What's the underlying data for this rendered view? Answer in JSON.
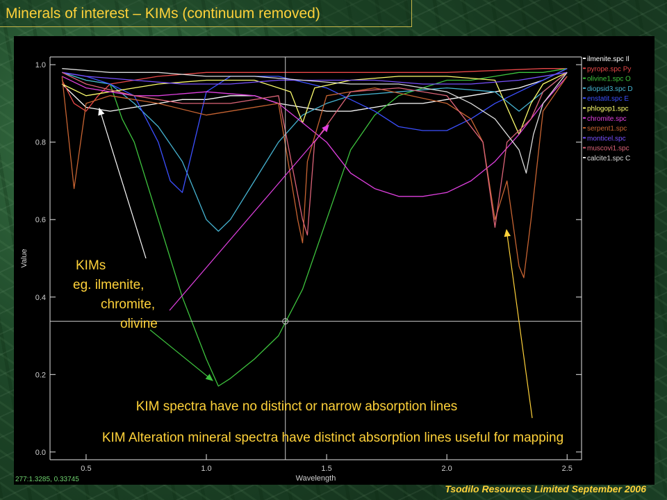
{
  "slide": {
    "title": "Minerals of interest – KIMs (continuum removed)",
    "footer": "Tsodilo Resources Limited September 2006"
  },
  "colors": {
    "annotation_text": "#ffd23a",
    "ilmenite": "#ffffff",
    "pyrope": "#e84848",
    "olivine": "#3ec43e",
    "diopside": "#46b4d2",
    "enstatite": "#3c50ff",
    "phlogopite": "#ffff6e",
    "chromite": "#e040e0",
    "serpentine": "#c86432",
    "monticellite": "#7850ff",
    "muscovite": "#dc6478",
    "calcite": "#dcdcdc",
    "cursor": "#cccccc"
  },
  "chart_data": {
    "type": "line",
    "xlabel": "Wavelength",
    "ylabel": "Value",
    "xlim": [
      0.35,
      2.56
    ],
    "ylim": [
      -0.02,
      1.02
    ],
    "xticks": [
      "0.5",
      "1.0",
      "1.5",
      "2.0",
      "2.5"
    ],
    "xtick_values": [
      0.5,
      1.0,
      1.5,
      2.0,
      2.5
    ],
    "yticks": [
      "0.0",
      "0.2",
      "0.4",
      "0.6",
      "0.8",
      "1.0"
    ],
    "ytick_values": [
      0.0,
      0.2,
      0.4,
      0.6,
      0.8,
      1.0
    ],
    "grid": false,
    "legend_position": "top-right",
    "cursor": {
      "x": 1.3285,
      "y": 0.33745,
      "readout": "277:1.3285, 0.33745"
    },
    "series": [
      {
        "name": "ilmenite.spc Il",
        "color_key": "ilmenite",
        "x": [
          0.4,
          0.5,
          0.6,
          0.7,
          0.8,
          0.9,
          1.0,
          1.1,
          1.2,
          1.3,
          1.4,
          1.5,
          1.6,
          1.7,
          1.8,
          1.9,
          2.0,
          2.1,
          2.2,
          2.3,
          2.4,
          2.5
        ],
        "y": [
          0.95,
          0.89,
          0.88,
          0.89,
          0.9,
          0.91,
          0.91,
          0.92,
          0.92,
          0.9,
          0.89,
          0.88,
          0.88,
          0.89,
          0.9,
          0.9,
          0.91,
          0.92,
          0.93,
          0.94,
          0.96,
          0.99
        ]
      },
      {
        "name": "pyrope.spc Py",
        "color_key": "pyrope",
        "x": [
          0.4,
          0.45,
          0.5,
          0.55,
          0.6,
          0.7,
          0.8,
          1.0,
          1.3,
          1.6,
          2.0,
          2.4,
          2.5
        ],
        "y": [
          0.96,
          0.9,
          0.88,
          0.92,
          0.95,
          0.96,
          0.97,
          0.98,
          0.98,
          0.98,
          0.98,
          0.99,
          0.99
        ]
      },
      {
        "name": "olivine1.spc O",
        "color_key": "olivine",
        "x": [
          0.4,
          0.5,
          0.6,
          0.65,
          0.7,
          0.8,
          0.9,
          1.0,
          1.05,
          1.1,
          1.2,
          1.3,
          1.4,
          1.5,
          1.6,
          1.7,
          1.8,
          1.9,
          2.0,
          2.1,
          2.2,
          2.3,
          2.4,
          2.5
        ],
        "y": [
          0.98,
          0.96,
          0.95,
          0.86,
          0.8,
          0.6,
          0.4,
          0.24,
          0.17,
          0.19,
          0.24,
          0.3,
          0.42,
          0.6,
          0.78,
          0.87,
          0.92,
          0.94,
          0.96,
          0.96,
          0.97,
          0.98,
          0.98,
          0.99
        ]
      },
      {
        "name": "diopsid3.spc D",
        "color_key": "diopside",
        "x": [
          0.4,
          0.5,
          0.6,
          0.7,
          0.8,
          0.9,
          1.0,
          1.05,
          1.1,
          1.2,
          1.3,
          1.4,
          1.5,
          1.6,
          1.8,
          2.0,
          2.2,
          2.3,
          2.4,
          2.5
        ],
        "y": [
          0.98,
          0.96,
          0.95,
          0.9,
          0.84,
          0.75,
          0.6,
          0.57,
          0.6,
          0.7,
          0.8,
          0.87,
          0.9,
          0.92,
          0.93,
          0.94,
          0.93,
          0.88,
          0.93,
          0.98
        ]
      },
      {
        "name": "enstatit.spc E",
        "color_key": "enstatite",
        "x": [
          0.4,
          0.5,
          0.6,
          0.7,
          0.8,
          0.85,
          0.9,
          0.95,
          1.0,
          1.1,
          1.3,
          1.5,
          1.7,
          1.8,
          1.9,
          2.0,
          2.1,
          2.2,
          2.4,
          2.5
        ],
        "y": [
          0.98,
          0.97,
          0.95,
          0.92,
          0.8,
          0.7,
          0.67,
          0.8,
          0.93,
          0.97,
          0.97,
          0.94,
          0.88,
          0.84,
          0.83,
          0.83,
          0.86,
          0.9,
          0.96,
          0.99
        ]
      },
      {
        "name": "phlogop1.spc",
        "color_key": "phlogopite",
        "x": [
          0.4,
          0.5,
          0.6,
          0.8,
          1.0,
          1.2,
          1.35,
          1.4,
          1.45,
          1.6,
          1.8,
          2.0,
          2.2,
          2.3,
          2.35,
          2.4,
          2.5
        ],
        "y": [
          0.95,
          0.92,
          0.93,
          0.95,
          0.96,
          0.96,
          0.93,
          0.85,
          0.94,
          0.96,
          0.97,
          0.97,
          0.96,
          0.82,
          0.9,
          0.95,
          0.98
        ]
      },
      {
        "name": "chromite.spc",
        "color_key": "chromite",
        "x": [
          0.4,
          0.5,
          0.6,
          0.7,
          0.8,
          1.0,
          1.2,
          1.3,
          1.4,
          1.5,
          1.6,
          1.7,
          1.8,
          1.9,
          2.0,
          2.1,
          2.2,
          2.3,
          2.4,
          2.5
        ],
        "y": [
          0.97,
          0.94,
          0.93,
          0.92,
          0.92,
          0.93,
          0.92,
          0.9,
          0.85,
          0.8,
          0.72,
          0.68,
          0.66,
          0.66,
          0.67,
          0.7,
          0.75,
          0.82,
          0.9,
          0.97
        ]
      },
      {
        "name": "serpent1.spc",
        "color_key": "serpentine",
        "x": [
          0.4,
          0.45,
          0.5,
          0.6,
          0.8,
          1.0,
          1.3,
          1.38,
          1.4,
          1.42,
          1.5,
          1.7,
          2.0,
          2.1,
          2.15,
          2.2,
          2.25,
          2.3,
          2.32,
          2.35,
          2.4,
          2.5
        ],
        "y": [
          0.97,
          0.68,
          0.9,
          0.92,
          0.9,
          0.87,
          0.9,
          0.6,
          0.54,
          0.75,
          0.92,
          0.94,
          0.9,
          0.86,
          0.8,
          0.6,
          0.7,
          0.48,
          0.45,
          0.6,
          0.88,
          0.97
        ]
      },
      {
        "name": "monticel.spc",
        "color_key": "monticellite",
        "x": [
          0.4,
          0.5,
          0.7,
          0.9,
          1.1,
          1.3,
          1.5,
          1.7,
          1.9,
          2.1,
          2.3,
          2.5
        ],
        "y": [
          0.98,
          0.97,
          0.96,
          0.95,
          0.95,
          0.96,
          0.96,
          0.96,
          0.95,
          0.95,
          0.96,
          0.98
        ]
      },
      {
        "name": "muscovi1.spc",
        "color_key": "muscovite",
        "x": [
          0.4,
          0.5,
          0.7,
          0.9,
          1.1,
          1.3,
          1.4,
          1.42,
          1.45,
          1.6,
          1.8,
          2.0,
          2.15,
          2.2,
          2.25,
          2.35,
          2.4,
          2.5
        ],
        "y": [
          0.98,
          0.95,
          0.92,
          0.9,
          0.9,
          0.92,
          0.6,
          0.56,
          0.8,
          0.93,
          0.94,
          0.92,
          0.8,
          0.58,
          0.8,
          0.86,
          0.93,
          0.98
        ]
      },
      {
        "name": "calcite1.spc C",
        "color_key": "calcite",
        "x": [
          0.4,
          0.6,
          0.8,
          1.0,
          1.2,
          1.4,
          1.6,
          1.8,
          2.0,
          2.1,
          2.2,
          2.3,
          2.33,
          2.36,
          2.4,
          2.5
        ],
        "y": [
          0.99,
          0.98,
          0.98,
          0.97,
          0.97,
          0.96,
          0.95,
          0.95,
          0.93,
          0.9,
          0.86,
          0.78,
          0.72,
          0.82,
          0.9,
          0.98
        ]
      }
    ],
    "annotations": [
      {
        "lines": [
          "KIMs"
        ]
      },
      {
        "lines": [
          "eg. ilmenite,"
        ]
      },
      {
        "lines": [
          "chromite,"
        ]
      },
      {
        "lines": [
          "olivine"
        ]
      },
      {
        "lines": [
          "KIM spectra have no distinct or narrow absorption lines"
        ]
      },
      {
        "lines": [
          "KIM Alteration mineral spectra have distinct absorption lines useful for mapping"
        ]
      }
    ]
  }
}
